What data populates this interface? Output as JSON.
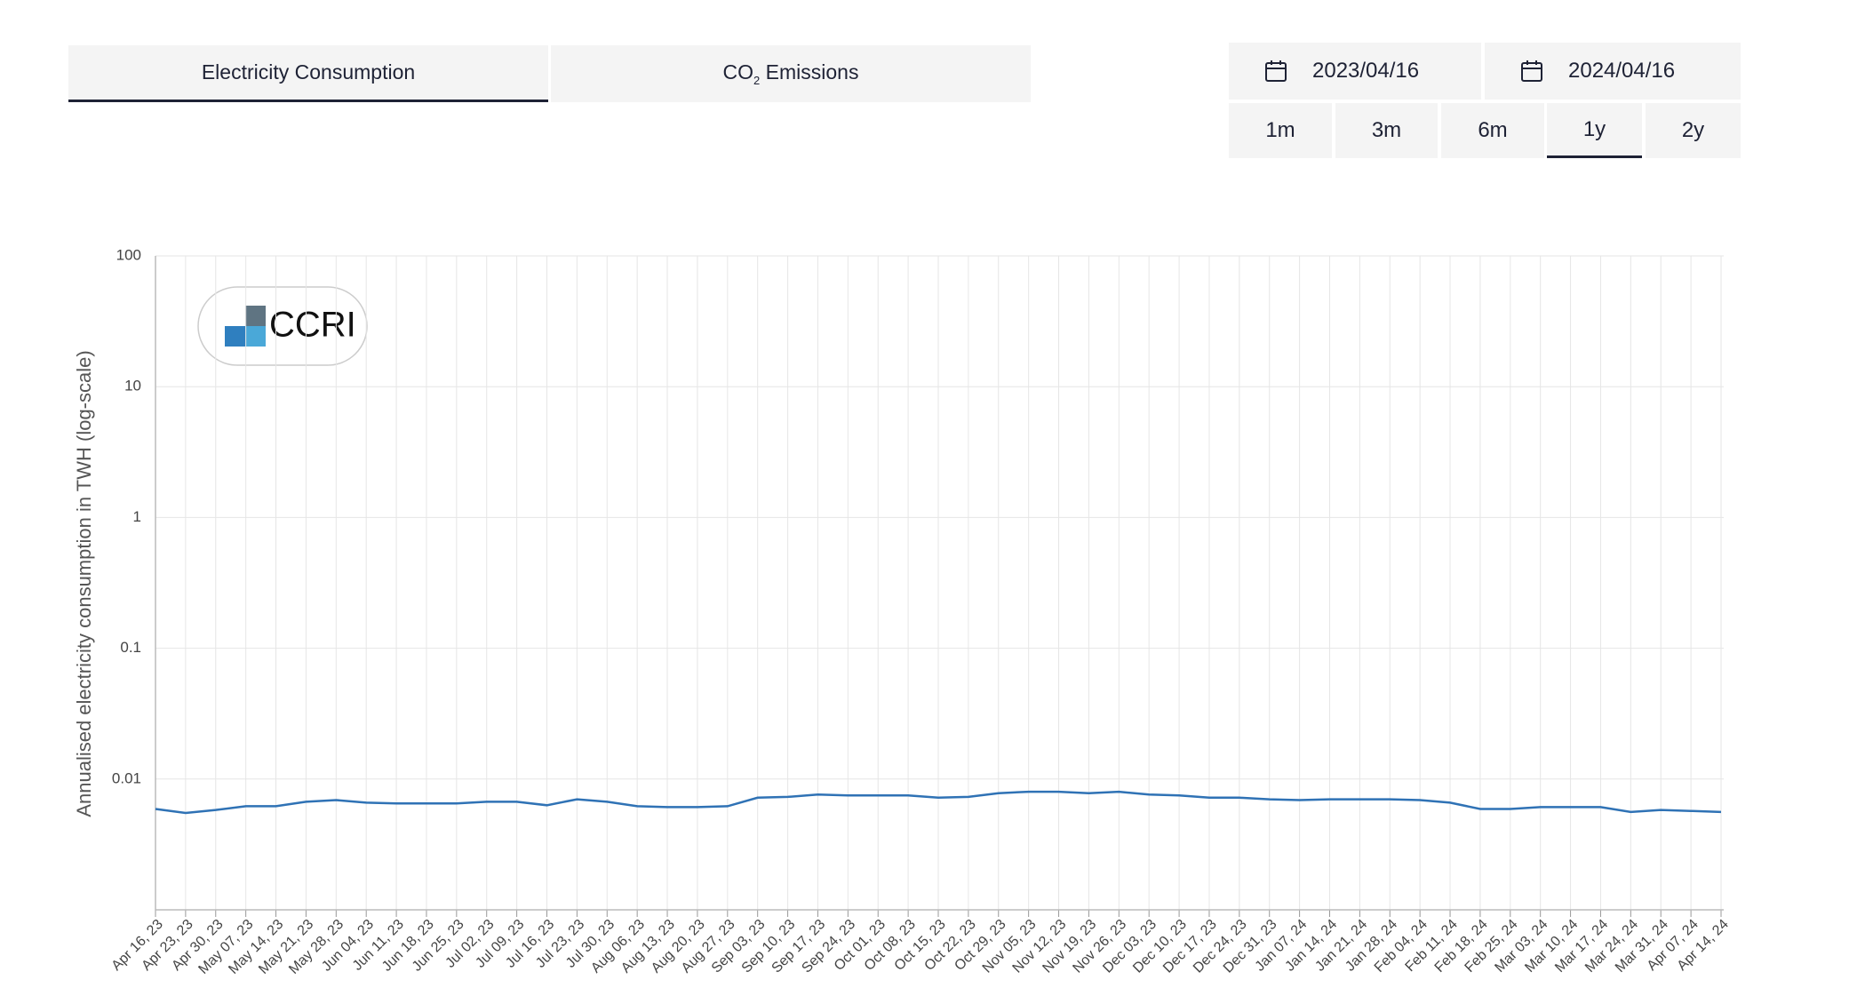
{
  "tabs": [
    {
      "text": "Electricity Consumption"
    },
    {
      "text": "CO",
      "subscript": "2",
      "suffix": "Emissions"
    }
  ],
  "active_tab": 0,
  "date_range": {
    "start": "2023/04/16",
    "end": "2024/04/16"
  },
  "ranges": [
    "1m",
    "3m",
    "6m",
    "1y",
    "2y"
  ],
  "selected_range": "1y",
  "logo": "CCRI",
  "chart_data": {
    "type": "line",
    "y_label": "Annualised electricity consumption in TWH (log-scale)",
    "y_scale": "log",
    "ylim": [
      0.001,
      100
    ],
    "yticks": [
      100,
      10,
      1,
      0.1,
      0.01
    ],
    "grid": true,
    "categories": [
      "Apr 16, 23",
      "Apr 23, 23",
      "Apr 30, 23",
      "May 07, 23",
      "May 14, 23",
      "May 21, 23",
      "May 28, 23",
      "Jun 04, 23",
      "Jun 11, 23",
      "Jun 18, 23",
      "Jun 25, 23",
      "Jul 02, 23",
      "Jul 09, 23",
      "Jul 16, 23",
      "Jul 23, 23",
      "Jul 30, 23",
      "Aug 06, 23",
      "Aug 13, 23",
      "Aug 20, 23",
      "Aug 27, 23",
      "Sep 03, 23",
      "Sep 10, 23",
      "Sep 17, 23",
      "Sep 24, 23",
      "Oct 01, 23",
      "Oct 08, 23",
      "Oct 15, 23",
      "Oct 22, 23",
      "Oct 29, 23",
      "Nov 05, 23",
      "Nov 12, 23",
      "Nov 19, 23",
      "Nov 26, 23",
      "Dec 03, 23",
      "Dec 10, 23",
      "Dec 17, 23",
      "Dec 24, 23",
      "Dec 31, 23",
      "Jan 07, 24",
      "Jan 14, 24",
      "Jan 21, 24",
      "Jan 28, 24",
      "Feb 04, 24",
      "Feb 11, 24",
      "Feb 18, 24",
      "Feb 25, 24",
      "Mar 03, 24",
      "Mar 10, 24",
      "Mar 17, 24",
      "Mar 24, 24",
      "Mar 31, 24",
      "Apr 07, 24",
      "Apr 14, 24"
    ],
    "series": [
      {
        "color": "#2f72b5",
        "values": [
          0.0059,
          0.0055,
          0.0058,
          0.0062,
          0.0062,
          0.0067,
          0.0069,
          0.0066,
          0.0065,
          0.0065,
          0.0065,
          0.0067,
          0.0067,
          0.0063,
          0.007,
          0.0067,
          0.0062,
          0.0061,
          0.0061,
          0.0062,
          0.0072,
          0.0073,
          0.0076,
          0.0075,
          0.0075,
          0.0075,
          0.0072,
          0.0073,
          0.0078,
          0.008,
          0.008,
          0.0078,
          0.008,
          0.0076,
          0.0075,
          0.0072,
          0.0072,
          0.007,
          0.0069,
          0.007,
          0.007,
          0.007,
          0.0069,
          0.0066,
          0.0059,
          0.0059,
          0.0061,
          0.0061,
          0.0061,
          0.0056,
          0.0058,
          0.0057,
          0.0056
        ]
      }
    ]
  }
}
